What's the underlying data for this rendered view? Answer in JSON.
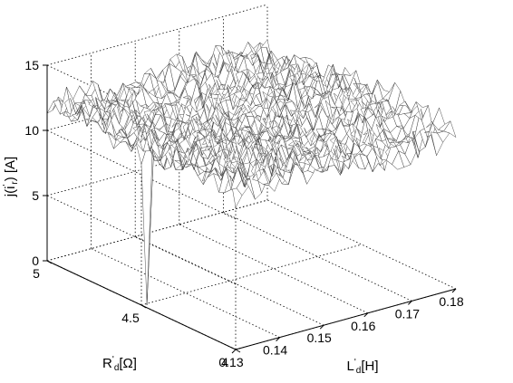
{
  "chart_data": {
    "type": "surface",
    "title": "",
    "xlabel": {
      "base": "L",
      "prime": "'",
      "sub": "d",
      "unit": "[H]"
    },
    "ylabel": {
      "base": "R",
      "prime": "'",
      "sub": "d",
      "unit": "[Ω]"
    },
    "zlabel": {
      "base": "j(i",
      "prime": "'",
      "sub": "r",
      "unit": ") [A]"
    },
    "xlim": [
      0.13,
      0.18
    ],
    "ylim": [
      4,
      5
    ],
    "zlim": [
      0,
      15
    ],
    "xticks": [
      "0.13",
      "0.14",
      "0.15",
      "0.16",
      "0.17",
      "0.18"
    ],
    "yticks": [
      "4",
      "4.5",
      "5"
    ],
    "zticks": [
      "0",
      "5",
      "10",
      "15"
    ],
    "grid": true,
    "surface": {
      "baseline_level": 11.8,
      "noise_amplitude": 1.2,
      "spike": {
        "x": 0.13,
        "y": 4.46,
        "z": 0.2
      }
    }
  }
}
